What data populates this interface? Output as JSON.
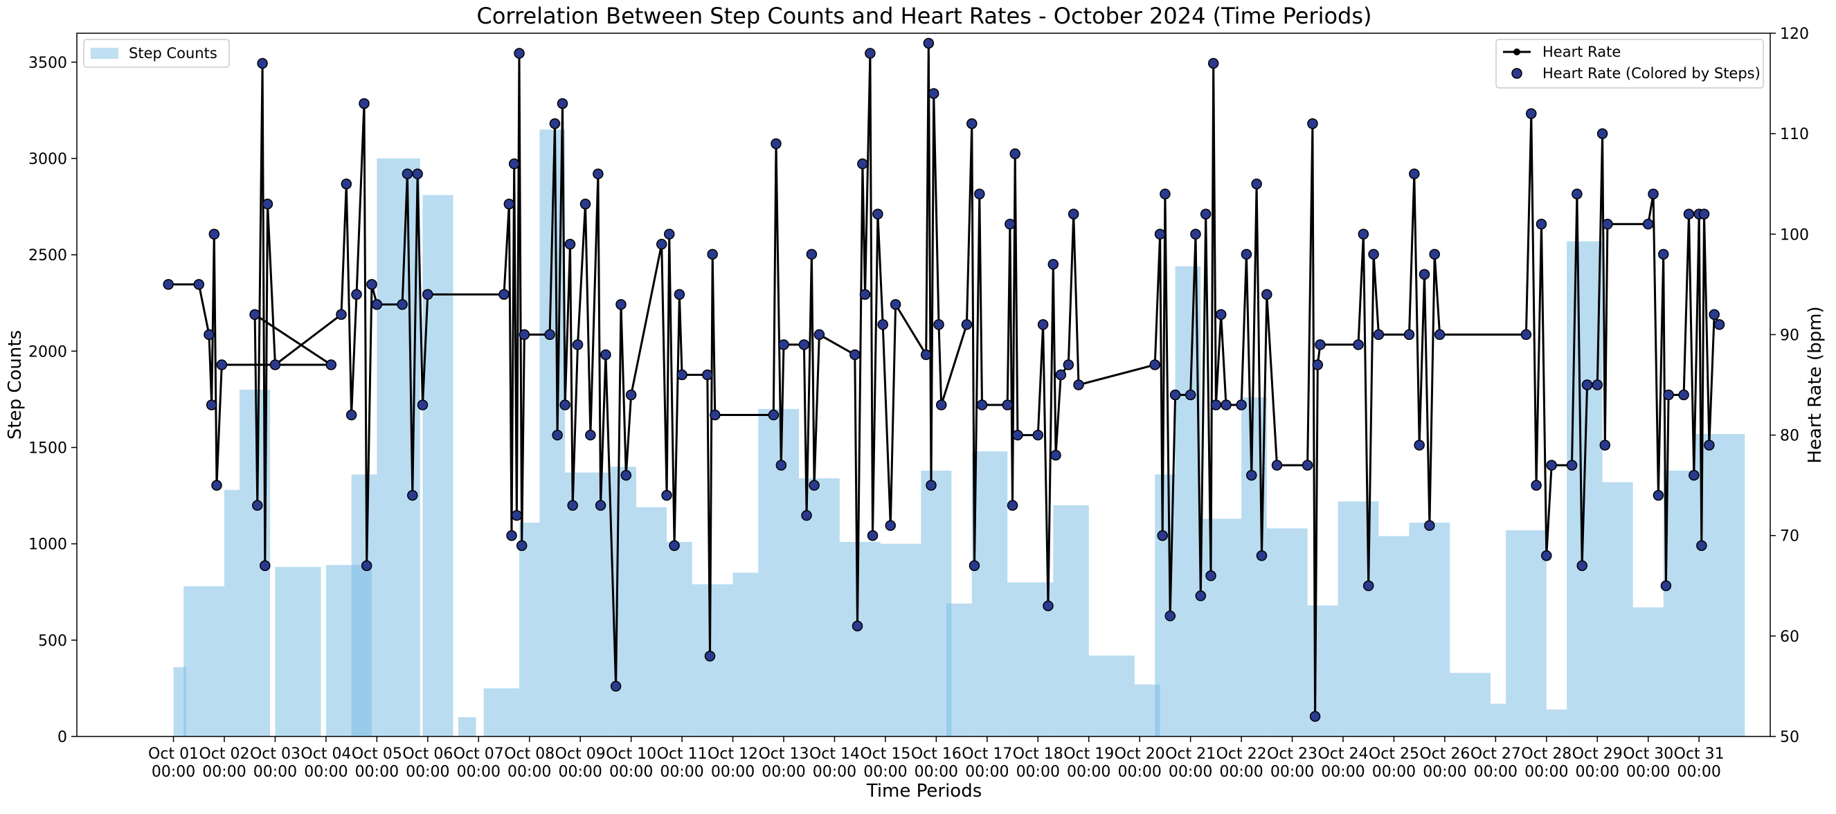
{
  "colors": {
    "bars": "#7fbfe6",
    "heart_line": "#000000",
    "heart_marker": "#2a3a8f",
    "marker_edge": "#000000"
  },
  "chart_data": {
    "type": "bar",
    "title": "Correlation Between Step Counts and Heart Rates - October 2024 (Time Periods)",
    "xlabel": "Time Periods",
    "ylabel_left": "Step Counts",
    "ylabel_right": "Heart Rate (bpm)",
    "ylim_left": [
      0,
      3650
    ],
    "ylim_right": [
      50,
      120
    ],
    "xlim_days": [
      -1.9,
      31.4
    ],
    "yticks_left": [
      0,
      500,
      1000,
      1500,
      2000,
      2500,
      3000,
      3500
    ],
    "yticks_right": [
      50,
      60,
      70,
      80,
      90,
      100,
      110,
      120
    ],
    "x_tick_labels": [
      [
        "Oct 01",
        "00:00"
      ],
      [
        "Oct 02",
        "00:00"
      ],
      [
        "Oct 03",
        "00:00"
      ],
      [
        "Oct 04",
        "00:00"
      ],
      [
        "Oct 05",
        "00:00"
      ],
      [
        "Oct 06",
        "00:00"
      ],
      [
        "Oct 07",
        "00:00"
      ],
      [
        "Oct 08",
        "00:00"
      ],
      [
        "Oct 09",
        "00:00"
      ],
      [
        "Oct 10",
        "00:00"
      ],
      [
        "Oct 11",
        "00:00"
      ],
      [
        "Oct 12",
        "00:00"
      ],
      [
        "Oct 13",
        "00:00"
      ],
      [
        "Oct 14",
        "00:00"
      ],
      [
        "Oct 15",
        "00:00"
      ],
      [
        "Oct 16",
        "00:00"
      ],
      [
        "Oct 17",
        "00:00"
      ],
      [
        "Oct 18",
        "00:00"
      ],
      [
        "Oct 19",
        "00:00"
      ],
      [
        "Oct 20",
        "00:00"
      ],
      [
        "Oct 21",
        "00:00"
      ],
      [
        "Oct 22",
        "00:00"
      ],
      [
        "Oct 23",
        "00:00"
      ],
      [
        "Oct 24",
        "00:00"
      ],
      [
        "Oct 25",
        "00:00"
      ],
      [
        "Oct 26",
        "00:00"
      ],
      [
        "Oct 27",
        "00:00"
      ],
      [
        "Oct 28",
        "00:00"
      ],
      [
        "Oct 29",
        "00:00"
      ],
      [
        "Oct 30",
        "00:00"
      ],
      [
        "Oct 31",
        "00:00"
      ]
    ],
    "legend": {
      "left": [
        {
          "label": "Step Counts",
          "kind": "bar"
        }
      ],
      "right": [
        {
          "label": "Heart Rate",
          "kind": "line"
        },
        {
          "label": "Heart Rate (Colored by Steps)",
          "kind": "marker"
        }
      ]
    },
    "steps": [
      {
        "day": 0.0,
        "width": 0.25,
        "value": 360
      },
      {
        "day": 0.2,
        "width": 0.8,
        "value": 780
      },
      {
        "day": 1.0,
        "width": 0.3,
        "value": 1280
      },
      {
        "day": 1.3,
        "width": 0.6,
        "value": 1800
      },
      {
        "day": 2.0,
        "width": 0.9,
        "value": 880
      },
      {
        "day": 3.0,
        "width": 0.9,
        "value": 890
      },
      {
        "day": 3.5,
        "width": 0.5,
        "value": 1360
      },
      {
        "day": 4.0,
        "width": 0.85,
        "value": 3000
      },
      {
        "day": 4.9,
        "width": 0.6,
        "value": 2810
      },
      {
        "day": 5.6,
        "width": 0.35,
        "value": 100
      },
      {
        "day": 6.1,
        "width": 0.7,
        "value": 250
      },
      {
        "day": 6.8,
        "width": 0.4,
        "value": 1110
      },
      {
        "day": 7.2,
        "width": 0.5,
        "value": 3150
      },
      {
        "day": 7.7,
        "width": 0.9,
        "value": 1370
      },
      {
        "day": 8.6,
        "width": 0.5,
        "value": 1400
      },
      {
        "day": 9.1,
        "width": 0.6,
        "value": 1190
      },
      {
        "day": 9.7,
        "width": 0.5,
        "value": 1010
      },
      {
        "day": 10.2,
        "width": 0.8,
        "value": 790
      },
      {
        "day": 11.0,
        "width": 0.5,
        "value": 850
      },
      {
        "day": 11.5,
        "width": 0.8,
        "value": 1700
      },
      {
        "day": 12.3,
        "width": 0.8,
        "value": 1340
      },
      {
        "day": 13.1,
        "width": 0.8,
        "value": 1010
      },
      {
        "day": 13.9,
        "width": 0.8,
        "value": 1000
      },
      {
        "day": 14.7,
        "width": 0.6,
        "value": 1380
      },
      {
        "day": 15.2,
        "width": 0.5,
        "value": 690
      },
      {
        "day": 15.7,
        "width": 0.7,
        "value": 1480
      },
      {
        "day": 16.4,
        "width": 0.9,
        "value": 800
      },
      {
        "day": 17.3,
        "width": 0.7,
        "value": 1200
      },
      {
        "day": 18.0,
        "width": 0.9,
        "value": 420
      },
      {
        "day": 18.9,
        "width": 0.5,
        "value": 270
      },
      {
        "day": 19.3,
        "width": 0.4,
        "value": 1360
      },
      {
        "day": 19.7,
        "width": 0.5,
        "value": 2440
      },
      {
        "day": 20.2,
        "width": 0.8,
        "value": 1130
      },
      {
        "day": 21.0,
        "width": 0.5,
        "value": 1760
      },
      {
        "day": 21.5,
        "width": 0.8,
        "value": 1080
      },
      {
        "day": 22.3,
        "width": 0.6,
        "value": 680
      },
      {
        "day": 22.9,
        "width": 0.8,
        "value": 1220
      },
      {
        "day": 23.7,
        "width": 0.6,
        "value": 1040
      },
      {
        "day": 24.3,
        "width": 0.8,
        "value": 1110
      },
      {
        "day": 25.1,
        "width": 0.8,
        "value": 330
      },
      {
        "day": 25.9,
        "width": 0.3,
        "value": 170
      },
      {
        "day": 26.2,
        "width": 0.8,
        "value": 1070
      },
      {
        "day": 27.0,
        "width": 0.4,
        "value": 140
      },
      {
        "day": 27.4,
        "width": 0.7,
        "value": 2570
      },
      {
        "day": 28.1,
        "width": 0.6,
        "value": 1320
      },
      {
        "day": 28.7,
        "width": 0.6,
        "value": 670
      },
      {
        "day": 29.3,
        "width": 0.6,
        "value": 1380
      },
      {
        "day": 29.9,
        "width": 1.0,
        "value": 1570
      }
    ],
    "heart_rate": [
      {
        "day": -0.1,
        "value": 95
      },
      {
        "day": 0.5,
        "value": 95
      },
      {
        "day": 0.7,
        "value": 90
      },
      {
        "day": 0.75,
        "value": 83
      },
      {
        "day": 0.8,
        "value": 100
      },
      {
        "day": 0.85,
        "value": 75
      },
      {
        "day": 0.95,
        "value": 87
      },
      {
        "day": 3.1,
        "value": 87
      },
      {
        "day": 1.6,
        "value": 92
      },
      {
        "day": 1.65,
        "value": 73
      },
      {
        "day": 1.75,
        "value": 117
      },
      {
        "day": 1.8,
        "value": 67
      },
      {
        "day": 1.85,
        "value": 103
      },
      {
        "day": 2.0,
        "value": 87
      },
      {
        "day": 3.3,
        "value": 92
      },
      {
        "day": 3.4,
        "value": 105
      },
      {
        "day": 3.5,
        "value": 82
      },
      {
        "day": 3.6,
        "value": 94
      },
      {
        "day": 3.75,
        "value": 113
      },
      {
        "day": 3.8,
        "value": 67
      },
      {
        "day": 3.9,
        "value": 95
      },
      {
        "day": 4.0,
        "value": 93
      },
      {
        "day": 4.5,
        "value": 93
      },
      {
        "day": 4.6,
        "value": 106
      },
      {
        "day": 4.7,
        "value": 74
      },
      {
        "day": 4.8,
        "value": 106
      },
      {
        "day": 4.9,
        "value": 83
      },
      {
        "day": 5.0,
        "value": 94
      },
      {
        "day": 6.5,
        "value": 94
      },
      {
        "day": 6.6,
        "value": 103
      },
      {
        "day": 6.65,
        "value": 70
      },
      {
        "day": 6.7,
        "value": 107
      },
      {
        "day": 6.75,
        "value": 72
      },
      {
        "day": 6.8,
        "value": 118
      },
      {
        "day": 6.85,
        "value": 69
      },
      {
        "day": 6.9,
        "value": 90
      },
      {
        "day": 7.4,
        "value": 90
      },
      {
        "day": 7.5,
        "value": 111
      },
      {
        "day": 7.55,
        "value": 80
      },
      {
        "day": 7.65,
        "value": 113
      },
      {
        "day": 7.7,
        "value": 83
      },
      {
        "day": 7.8,
        "value": 99
      },
      {
        "day": 7.85,
        "value": 73
      },
      {
        "day": 7.95,
        "value": 89
      },
      {
        "day": 8.1,
        "value": 103
      },
      {
        "day": 8.2,
        "value": 80
      },
      {
        "day": 8.35,
        "value": 106
      },
      {
        "day": 8.4,
        "value": 73
      },
      {
        "day": 8.5,
        "value": 88
      },
      {
        "day": 8.7,
        "value": 55
      },
      {
        "day": 8.8,
        "value": 93
      },
      {
        "day": 8.9,
        "value": 76
      },
      {
        "day": 9.0,
        "value": 84
      },
      {
        "day": 9.6,
        "value": 99
      },
      {
        "day": 9.7,
        "value": 74
      },
      {
        "day": 9.75,
        "value": 100
      },
      {
        "day": 9.85,
        "value": 69
      },
      {
        "day": 9.95,
        "value": 94
      },
      {
        "day": 10.0,
        "value": 86
      },
      {
        "day": 10.5,
        "value": 86
      },
      {
        "day": 10.55,
        "value": 58
      },
      {
        "day": 10.6,
        "value": 98
      },
      {
        "day": 10.65,
        "value": 82
      },
      {
        "day": 11.8,
        "value": 82
      },
      {
        "day": 11.85,
        "value": 109
      },
      {
        "day": 11.95,
        "value": 77
      },
      {
        "day": 12.0,
        "value": 89
      },
      {
        "day": 12.4,
        "value": 89
      },
      {
        "day": 12.45,
        "value": 72
      },
      {
        "day": 12.55,
        "value": 98
      },
      {
        "day": 12.6,
        "value": 75
      },
      {
        "day": 12.7,
        "value": 90
      },
      {
        "day": 13.4,
        "value": 88
      },
      {
        "day": 13.45,
        "value": 61
      },
      {
        "day": 13.55,
        "value": 107
      },
      {
        "day": 13.6,
        "value": 94
      },
      {
        "day": 13.7,
        "value": 118
      },
      {
        "day": 13.75,
        "value": 70
      },
      {
        "day": 13.85,
        "value": 102
      },
      {
        "day": 13.95,
        "value": 91
      },
      {
        "day": 14.1,
        "value": 71
      },
      {
        "day": 14.2,
        "value": 93
      },
      {
        "day": 14.8,
        "value": 88
      },
      {
        "day": 14.85,
        "value": 119
      },
      {
        "day": 14.9,
        "value": 75
      },
      {
        "day": 14.95,
        "value": 114
      },
      {
        "day": 15.05,
        "value": 91
      },
      {
        "day": 15.1,
        "value": 83
      },
      {
        "day": 15.6,
        "value": 91
      },
      {
        "day": 15.7,
        "value": 111
      },
      {
        "day": 15.75,
        "value": 67
      },
      {
        "day": 15.85,
        "value": 104
      },
      {
        "day": 15.9,
        "value": 83
      },
      {
        "day": 16.4,
        "value": 83
      },
      {
        "day": 16.45,
        "value": 101
      },
      {
        "day": 16.5,
        "value": 73
      },
      {
        "day": 16.55,
        "value": 108
      },
      {
        "day": 16.6,
        "value": 80
      },
      {
        "day": 17.0,
        "value": 80
      },
      {
        "day": 17.1,
        "value": 91
      },
      {
        "day": 17.2,
        "value": 63
      },
      {
        "day": 17.3,
        "value": 97
      },
      {
        "day": 17.35,
        "value": 78
      },
      {
        "day": 17.45,
        "value": 86
      },
      {
        "day": 17.6,
        "value": 87
      },
      {
        "day": 17.7,
        "value": 102
      },
      {
        "day": 17.8,
        "value": 85
      },
      {
        "day": 19.3,
        "value": 87
      },
      {
        "day": 19.4,
        "value": 100
      },
      {
        "day": 19.45,
        "value": 70
      },
      {
        "day": 19.5,
        "value": 104
      },
      {
        "day": 19.6,
        "value": 62
      },
      {
        "day": 19.7,
        "value": 84
      },
      {
        "day": 20.0,
        "value": 84
      },
      {
        "day": 20.1,
        "value": 100
      },
      {
        "day": 20.2,
        "value": 64
      },
      {
        "day": 20.3,
        "value": 102
      },
      {
        "day": 20.4,
        "value": 66
      },
      {
        "day": 20.45,
        "value": 117
      },
      {
        "day": 20.5,
        "value": 83
      },
      {
        "day": 20.6,
        "value": 92
      },
      {
        "day": 20.7,
        "value": 83
      },
      {
        "day": 21.0,
        "value": 83
      },
      {
        "day": 21.1,
        "value": 98
      },
      {
        "day": 21.2,
        "value": 76
      },
      {
        "day": 21.3,
        "value": 105
      },
      {
        "day": 21.4,
        "value": 68
      },
      {
        "day": 21.5,
        "value": 94
      },
      {
        "day": 21.7,
        "value": 77
      },
      {
        "day": 22.3,
        "value": 77
      },
      {
        "day": 22.4,
        "value": 111
      },
      {
        "day": 22.45,
        "value": 52
      },
      {
        "day": 22.5,
        "value": 87
      },
      {
        "day": 22.55,
        "value": 89
      },
      {
        "day": 23.3,
        "value": 89
      },
      {
        "day": 23.4,
        "value": 100
      },
      {
        "day": 23.5,
        "value": 65
      },
      {
        "day": 23.6,
        "value": 98
      },
      {
        "day": 23.7,
        "value": 90
      },
      {
        "day": 24.3,
        "value": 90
      },
      {
        "day": 24.4,
        "value": 106
      },
      {
        "day": 24.5,
        "value": 79
      },
      {
        "day": 24.6,
        "value": 96
      },
      {
        "day": 24.7,
        "value": 71
      },
      {
        "day": 24.8,
        "value": 98
      },
      {
        "day": 24.9,
        "value": 90
      },
      {
        "day": 26.6,
        "value": 90
      },
      {
        "day": 26.7,
        "value": 112
      },
      {
        "day": 26.8,
        "value": 75
      },
      {
        "day": 26.9,
        "value": 101
      },
      {
        "day": 27.0,
        "value": 68
      },
      {
        "day": 27.1,
        "value": 77
      },
      {
        "day": 27.5,
        "value": 77
      },
      {
        "day": 27.6,
        "value": 104
      },
      {
        "day": 27.7,
        "value": 67
      },
      {
        "day": 27.8,
        "value": 85
      },
      {
        "day": 28.0,
        "value": 85
      },
      {
        "day": 28.1,
        "value": 110
      },
      {
        "day": 28.15,
        "value": 79
      },
      {
        "day": 28.2,
        "value": 101
      },
      {
        "day": 29.0,
        "value": 101
      },
      {
        "day": 29.1,
        "value": 104
      },
      {
        "day": 29.2,
        "value": 74
      },
      {
        "day": 29.3,
        "value": 98
      },
      {
        "day": 29.35,
        "value": 65
      },
      {
        "day": 29.4,
        "value": 84
      },
      {
        "day": 29.7,
        "value": 84
      },
      {
        "day": 29.8,
        "value": 102
      },
      {
        "day": 29.9,
        "value": 76
      },
      {
        "day": 30.0,
        "value": 102
      },
      {
        "day": 30.05,
        "value": 69
      },
      {
        "day": 30.1,
        "value": 102
      },
      {
        "day": 30.2,
        "value": 79
      },
      {
        "day": 30.3,
        "value": 92
      },
      {
        "day": 30.4,
        "value": 91
      }
    ]
  }
}
